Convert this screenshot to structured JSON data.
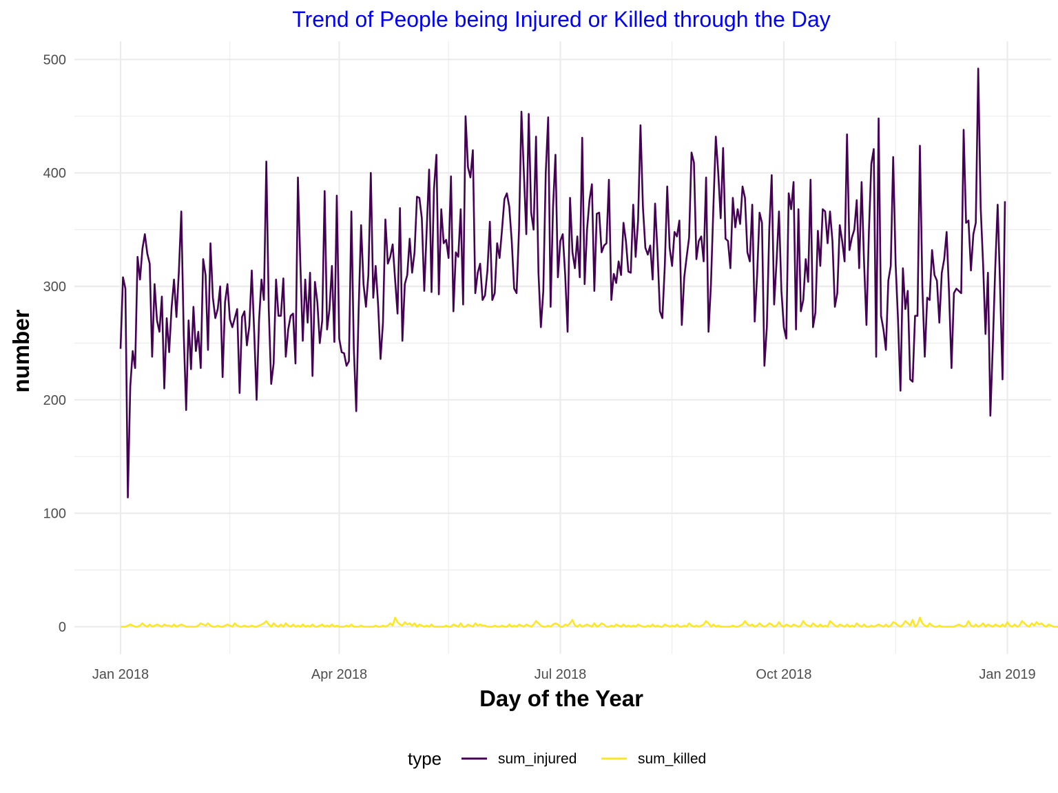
{
  "chart_data": {
    "type": "line",
    "title": "Trend of People being Injured or Killed through the Day",
    "title_color": "#0000ff",
    "xlabel": "Day of the Year",
    "ylabel": "number",
    "x_ticks": [
      {
        "date": "2018-01-01",
        "label": "Jan 2018"
      },
      {
        "date": "2018-04-01",
        "label": "Apr 2018"
      },
      {
        "date": "2018-07-01",
        "label": "Jul 2018"
      },
      {
        "date": "2018-10-01",
        "label": "Oct 2018"
      },
      {
        "date": "2019-01-01",
        "label": "Jan 2019"
      }
    ],
    "x_minor_ticks": [
      "2018-02-15",
      "2018-05-16",
      "2018-08-16",
      "2018-11-16"
    ],
    "xlim": [
      "2017-12-13",
      "2019-01-19"
    ],
    "y_ticks": [
      0,
      100,
      200,
      300,
      400,
      500
    ],
    "y_minor_ticks": [
      50,
      150,
      250,
      350,
      450
    ],
    "ylim": [
      -24,
      516
    ],
    "grid": true,
    "legend": {
      "title": "type",
      "position": "bottom"
    },
    "x_start": "2018-01-01",
    "x_end": "2018-12-31",
    "series": [
      {
        "name": "sum_injured",
        "color": "#440154",
        "values": [
          245,
          308,
          298,
          114,
          212,
          243,
          228,
          326,
          306,
          333,
          346,
          329,
          320,
          238,
          302,
          270,
          260,
          291,
          210,
          272,
          242,
          281,
          306,
          273,
          313,
          366,
          258,
          191,
          270,
          227,
          282,
          243,
          260,
          228,
          324,
          310,
          244,
          338,
          290,
          272,
          280,
          300,
          220,
          286,
          302,
          271,
          264,
          272,
          280,
          206,
          273,
          278,
          248,
          265,
          314,
          260,
          200,
          270,
          306,
          288,
          410,
          280,
          214,
          232,
          306,
          274,
          274,
          307,
          238,
          262,
          274,
          276,
          232,
          396,
          320,
          252,
          306,
          268,
          312,
          221,
          304,
          286,
          250,
          270,
          384,
          262,
          280,
          318,
          251,
          380,
          254,
          242,
          241,
          230,
          234,
          366,
          246,
          190,
          280,
          354,
          302,
          282,
          310,
          400,
          290,
          318,
          284,
          236,
          268,
          359,
          320,
          326,
          337,
          306,
          276,
          369,
          252,
          302,
          310,
          342,
          312,
          330,
          379,
          378,
          360,
          296,
          350,
          403,
          295,
          386,
          416,
          293,
          368,
          338,
          341,
          325,
          397,
          278,
          330,
          326,
          368,
          284,
          450,
          405,
          396,
          420,
          294,
          312,
          320,
          288,
          292,
          314,
          357,
          288,
          294,
          338,
          325,
          350,
          377,
          382,
          370,
          340,
          298,
          294,
          350,
          454,
          400,
          346,
          452,
          365,
          350,
          432,
          312,
          264,
          296,
          400,
          449,
          282,
          370,
          416,
          308,
          340,
          346,
          310,
          260,
          378,
          330,
          316,
          344,
          308,
          431,
          302,
          350,
          376,
          390,
          296,
          364,
          365,
          330,
          336,
          338,
          394,
          288,
          311,
          303,
          322,
          310,
          356,
          340,
          313,
          312,
          372,
          326,
          358,
          442,
          370,
          334,
          328,
          336,
          306,
          373,
          330,
          278,
          272,
          318,
          388,
          334,
          318,
          348,
          344,
          358,
          266,
          308,
          326,
          343,
          418,
          409,
          324,
          340,
          344,
          322,
          396,
          260,
          302,
          370,
          432,
          400,
          360,
          422,
          342,
          340,
          316,
          378,
          352,
          368,
          355,
          388,
          378,
          330,
          322,
          372,
          269,
          310,
          365,
          356,
          230,
          264,
          350,
          398,
          284,
          322,
          366,
          296,
          264,
          254,
          382,
          368,
          392,
          262,
          368,
          278,
          288,
          324,
          304,
          394,
          264,
          277,
          349,
          318,
          368,
          366,
          338,
          366,
          340,
          282,
          294,
          354,
          340,
          322,
          434,
          332,
          343,
          350,
          376,
          316,
          392,
          322,
          266,
          348,
          408,
          421,
          238,
          448,
          274,
          262,
          244,
          305,
          318,
          414,
          320,
          270,
          208,
          316,
          280,
          296,
          218,
          216,
          274,
          274,
          424,
          300,
          238,
          290,
          288,
          332,
          310,
          305,
          268,
          312,
          324,
          348,
          294,
          228,
          294,
          298,
          296,
          294,
          438,
          356,
          358,
          314,
          346,
          356,
          492,
          370,
          320,
          258,
          312,
          186,
          248,
          316,
          372,
          300,
          218,
          375
        ]
      },
      {
        "name": "sum_killed",
        "color": "#fde725",
        "values": [
          0,
          0,
          0,
          1,
          2,
          1,
          0,
          0,
          1,
          3,
          1,
          0,
          2,
          0,
          1,
          2,
          1,
          0,
          2,
          1,
          1,
          0,
          2,
          0,
          1,
          2,
          1,
          0,
          0,
          0,
          0,
          0,
          1,
          3,
          2,
          1,
          3,
          1,
          0,
          0,
          1,
          0,
          0,
          1,
          2,
          1,
          0,
          3,
          1,
          0,
          0,
          1,
          0,
          0,
          1,
          0,
          0,
          1,
          2,
          3,
          5,
          2,
          0,
          3,
          1,
          0,
          2,
          0,
          3,
          1,
          0,
          2,
          0,
          1,
          0,
          2,
          0,
          1,
          0,
          2,
          0,
          0,
          1,
          2,
          0,
          1,
          0,
          2,
          0,
          1,
          0,
          0,
          0,
          1,
          0,
          2,
          0,
          0,
          0,
          1,
          0,
          0,
          0,
          0,
          0,
          1,
          0,
          0,
          1,
          0,
          1,
          3,
          1,
          8,
          4,
          2,
          1,
          4,
          2,
          3,
          1,
          3,
          0,
          2,
          1,
          0,
          1,
          0,
          2,
          0,
          0,
          0,
          0,
          0,
          1,
          0,
          0,
          2,
          1,
          0,
          3,
          0,
          0,
          2,
          1,
          0,
          3,
          1,
          2,
          1,
          1,
          0,
          0,
          0,
          1,
          0,
          0,
          1,
          0,
          0,
          2,
          0,
          1,
          0,
          2,
          1,
          0,
          2,
          1,
          0,
          2,
          5,
          3,
          1,
          0,
          0,
          1,
          0,
          2,
          3,
          2,
          0,
          0,
          2,
          1,
          3,
          6,
          1,
          0,
          2,
          0,
          1,
          2,
          1,
          0,
          3,
          0,
          1,
          3,
          2,
          0,
          0,
          1,
          0,
          2,
          1,
          0,
          2,
          0,
          1,
          0,
          1,
          0,
          2,
          1,
          0,
          0,
          1,
          0,
          2,
          0,
          1,
          0,
          0,
          2,
          1,
          0,
          1,
          0,
          2,
          0,
          0,
          1,
          0,
          3,
          1,
          0,
          1,
          0,
          1,
          2,
          5,
          3,
          0,
          2,
          0,
          1,
          0,
          0,
          0,
          0,
          0,
          1,
          0,
          0,
          1,
          2,
          5,
          2,
          1,
          2,
          0,
          1,
          3,
          1,
          0,
          1,
          3,
          2,
          0,
          1,
          4,
          1,
          0,
          2,
          1,
          0,
          2,
          1,
          0,
          1,
          5,
          2,
          1,
          0,
          3,
          1,
          0,
          2,
          0,
          1,
          0,
          5,
          3,
          1,
          0,
          2,
          1,
          0,
          2,
          0,
          1,
          0,
          3,
          1,
          0,
          2,
          0,
          0,
          1,
          0,
          1,
          2,
          1,
          0,
          2,
          0,
          1,
          4,
          3,
          1,
          0,
          2,
          5,
          3,
          1,
          6,
          0,
          2,
          8,
          3,
          1,
          0,
          3,
          1,
          0,
          0,
          1,
          0,
          0,
          0,
          0,
          0,
          0,
          1,
          2,
          1,
          0,
          1,
          5,
          1,
          0,
          2,
          0,
          1,
          3,
          0,
          2,
          1,
          0,
          2,
          1,
          0,
          2,
          0,
          4,
          1,
          0,
          2,
          0,
          1,
          5,
          3,
          1,
          0,
          3,
          1,
          4,
          2,
          3,
          1,
          0,
          2,
          1,
          0,
          0,
          0,
          2,
          1,
          0,
          0,
          1,
          2,
          0,
          3
        ]
      }
    ]
  }
}
